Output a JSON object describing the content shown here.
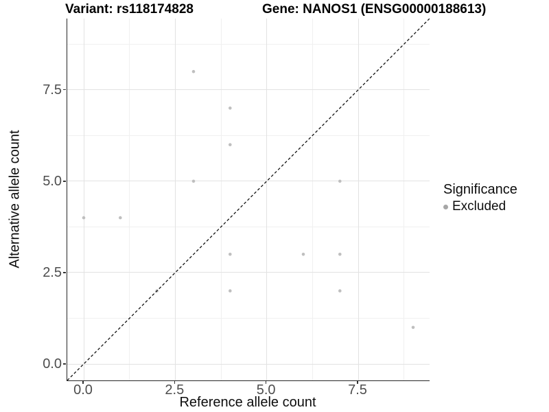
{
  "titles": {
    "variant": "Variant: rs118174828",
    "gene": "Gene: NANOS1 (ENSG00000188613)"
  },
  "axes": {
    "x": {
      "label": "Reference allele count",
      "tick_labels": [
        "0.0",
        "2.5",
        "5.0",
        "7.5"
      ],
      "tick_values": [
        0,
        2.5,
        5,
        7.5
      ],
      "minor_values": [
        1.25,
        3.75,
        6.25,
        8.75
      ]
    },
    "y": {
      "label": "Alternative allele count",
      "tick_labels": [
        "0.0",
        "2.5",
        "5.0",
        "7.5"
      ],
      "tick_values": [
        0,
        2.5,
        5,
        7.5
      ],
      "minor_values": [
        1.25,
        3.75,
        6.25,
        8.75
      ]
    }
  },
  "legend": {
    "title": "Significance",
    "items": [
      {
        "label": "Excluded",
        "marker": "circle-icon",
        "color": "#a6a6a6"
      }
    ]
  },
  "chart_data": {
    "type": "scatter",
    "title": "Variant: rs118174828 | Gene: NANOS1 (ENSG00000188613)",
    "xlabel": "Reference allele count",
    "ylabel": "Alternative allele count",
    "xlim": [
      -0.45,
      9.45
    ],
    "ylim": [
      -0.45,
      9.45
    ],
    "grid": "major+minor",
    "legend_position": "right-center",
    "series": [
      {
        "name": "Excluded",
        "color": "#bfbfbf",
        "marker": "circle",
        "points": [
          [
            0,
            4
          ],
          [
            1,
            4
          ],
          [
            2,
            2
          ],
          [
            3,
            5
          ],
          [
            3,
            8
          ],
          [
            4,
            2
          ],
          [
            4,
            3
          ],
          [
            4,
            6
          ],
          [
            4,
            7
          ],
          [
            6,
            3
          ],
          [
            7,
            2
          ],
          [
            7,
            3
          ],
          [
            7,
            5
          ],
          [
            9,
            1
          ]
        ]
      }
    ],
    "reference_line": {
      "type": "identity y=x",
      "style": "dashed",
      "color": "#000000"
    }
  },
  "colors": {
    "background": "#ffffff",
    "grid_major": "#e2e2e2",
    "grid_minor": "#f0f0f0",
    "axis_line": "#262626",
    "tick_text": "#4d4d4d",
    "point": "#bfbfbf",
    "legend_point": "#a6a6a6",
    "reference_line": "#111111"
  }
}
